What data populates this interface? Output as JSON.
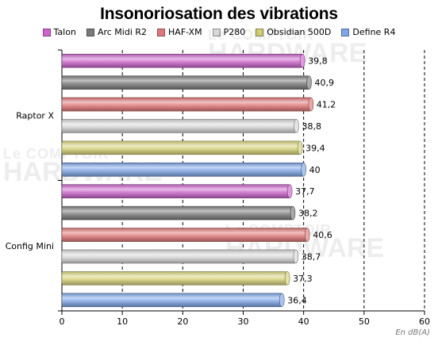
{
  "chart_data": {
    "type": "bar",
    "orientation": "horizontal",
    "title": "Insonoriosation des vibrations",
    "categories": [
      "Raptor X",
      "Config Mini"
    ],
    "series": [
      {
        "name": "Talon",
        "color": "#cc66cc",
        "values": [
          39.8,
          37.7
        ],
        "labels": [
          "39,8",
          "37,7"
        ]
      },
      {
        "name": "Arc Midi R2",
        "color": "#7a7a7a",
        "values": [
          40.9,
          38.2
        ],
        "labels": [
          "40,9",
          "38,2"
        ]
      },
      {
        "name": "HAF-XM",
        "color": "#e07878",
        "values": [
          41.2,
          40.6
        ],
        "labels": [
          "41,2",
          "40,6"
        ]
      },
      {
        "name": "P280",
        "color": "#d6d6d6",
        "values": [
          38.8,
          38.7
        ],
        "labels": [
          "38,8",
          "38,7"
        ]
      },
      {
        "name": "Obsidian 500D",
        "color": "#d6d27a",
        "values": [
          39.4,
          37.3
        ],
        "labels": [
          "39,4",
          "37,3"
        ]
      },
      {
        "name": "Define R4",
        "color": "#7fa6e6",
        "values": [
          40,
          36.4
        ],
        "labels": [
          "40",
          "36,4"
        ]
      }
    ],
    "xlim": [
      0,
      60
    ],
    "xticks": [
      0,
      10,
      20,
      30,
      40,
      50,
      60
    ],
    "xticklabels": [
      "0",
      "10",
      "20",
      "30",
      "40",
      "50",
      "60"
    ],
    "xlabel": "En dB(A)",
    "grid": "vertical dashed",
    "legend": "top"
  },
  "watermark": {
    "line1": "Le COMPTOIR",
    "line2": "HARDWARE"
  }
}
